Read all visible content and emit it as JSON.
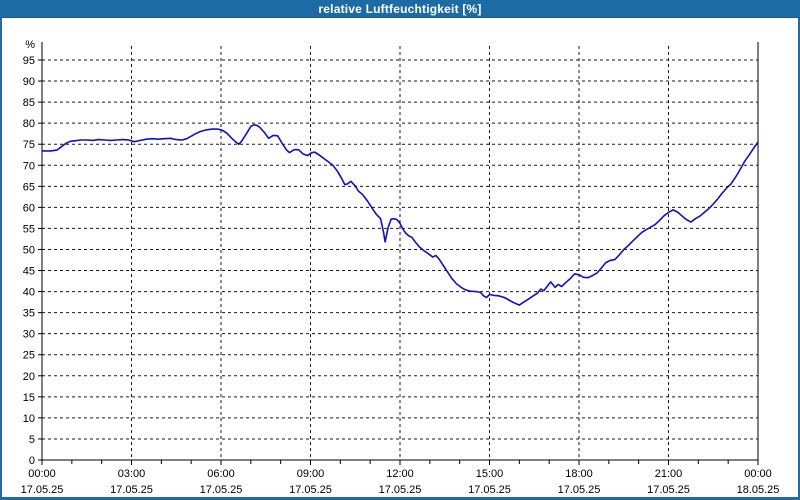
{
  "window": {
    "title": "relative Luftfeuchtigkeit [%]"
  },
  "colors": {
    "titlebar": "#1d6ba4",
    "titlebar_text": "#ffffff",
    "frame": "#1d6ba4",
    "plot_background": "#ffffff",
    "grid": "#1a1a1a",
    "axis": "#000000",
    "tick_label": "#000000",
    "curve": "#1111bd"
  },
  "chart_data": {
    "type": "line",
    "title": "relative Luftfeuchtigkeit [%]",
    "y_unit_label": "%",
    "ylabel": "relative Luftfeuchtigkeit",
    "ylim": [
      0,
      95
    ],
    "y_tick_step": 5,
    "y_ticks": [
      0,
      5,
      10,
      15,
      20,
      25,
      30,
      35,
      40,
      45,
      50,
      55,
      60,
      65,
      70,
      75,
      80,
      85,
      90,
      95
    ],
    "grid": "dashed",
    "legend": "none",
    "x_axis": {
      "unit": "time",
      "xlim_hours": [
        0,
        24
      ],
      "major_tick_interval_hours": 3,
      "minor_tick_interval_hours": 1,
      "labels": [
        {
          "t": 0,
          "time": "00:00",
          "date": "17.05.25"
        },
        {
          "t": 3,
          "time": "03:00",
          "date": "17.05.25"
        },
        {
          "t": 6,
          "time": "06:00",
          "date": "17.05.25"
        },
        {
          "t": 9,
          "time": "09:00",
          "date": "17.05.25"
        },
        {
          "t": 12,
          "time": "12:00",
          "date": "17.05.25"
        },
        {
          "t": 15,
          "time": "15:00",
          "date": "17.05.25"
        },
        {
          "t": 18,
          "time": "18:00",
          "date": "17.05.25"
        },
        {
          "t": 21,
          "time": "21:00",
          "date": "17.05.25"
        },
        {
          "t": 24,
          "time": "00:00",
          "date": "18.05.25"
        }
      ]
    },
    "series": [
      {
        "name": "relative Luftfeuchtigkeit",
        "unit": "%",
        "color": "#1111bd",
        "points": [
          [
            0.0,
            73.4
          ],
          [
            0.3,
            73.4
          ],
          [
            0.5,
            73.6
          ],
          [
            0.65,
            74.4
          ],
          [
            0.8,
            75.2
          ],
          [
            0.95,
            75.7
          ],
          [
            1.1,
            75.8
          ],
          [
            1.3,
            76.0
          ],
          [
            1.5,
            76.0
          ],
          [
            1.7,
            75.9
          ],
          [
            1.9,
            76.1
          ],
          [
            2.1,
            76.0
          ],
          [
            2.3,
            75.9
          ],
          [
            2.5,
            76.0
          ],
          [
            2.7,
            76.1
          ],
          [
            2.9,
            76.0
          ],
          [
            3.1,
            75.6
          ],
          [
            3.3,
            75.9
          ],
          [
            3.5,
            76.2
          ],
          [
            3.7,
            76.3
          ],
          [
            3.9,
            76.2
          ],
          [
            4.1,
            76.3
          ],
          [
            4.3,
            76.4
          ],
          [
            4.5,
            76.1
          ],
          [
            4.7,
            76.0
          ],
          [
            4.85,
            76.3
          ],
          [
            5.0,
            76.9
          ],
          [
            5.15,
            77.5
          ],
          [
            5.3,
            78.0
          ],
          [
            5.5,
            78.4
          ],
          [
            5.7,
            78.6
          ],
          [
            5.9,
            78.6
          ],
          [
            6.05,
            78.3
          ],
          [
            6.2,
            77.6
          ],
          [
            6.35,
            76.5
          ],
          [
            6.5,
            75.5
          ],
          [
            6.6,
            75.0
          ],
          [
            6.7,
            75.8
          ],
          [
            6.85,
            77.5
          ],
          [
            7.0,
            79.2
          ],
          [
            7.1,
            79.6
          ],
          [
            7.2,
            79.5
          ],
          [
            7.3,
            79.0
          ],
          [
            7.45,
            77.8
          ],
          [
            7.6,
            76.4
          ],
          [
            7.75,
            77.1
          ],
          [
            7.9,
            77.0
          ],
          [
            8.05,
            75.2
          ],
          [
            8.2,
            73.6
          ],
          [
            8.3,
            73.0
          ],
          [
            8.45,
            73.7
          ],
          [
            8.6,
            73.7
          ],
          [
            8.75,
            72.7
          ],
          [
            8.9,
            72.3
          ],
          [
            9.05,
            73.0
          ],
          [
            9.15,
            73.1
          ],
          [
            9.3,
            72.4
          ],
          [
            9.45,
            71.6
          ],
          [
            9.6,
            70.8
          ],
          [
            9.75,
            70.0
          ],
          [
            9.9,
            68.6
          ],
          [
            10.05,
            66.8
          ],
          [
            10.15,
            65.4
          ],
          [
            10.25,
            65.6
          ],
          [
            10.35,
            66.2
          ],
          [
            10.5,
            65.1
          ],
          [
            10.6,
            63.9
          ],
          [
            10.75,
            63.0
          ],
          [
            10.9,
            61.6
          ],
          [
            11.05,
            60.0
          ],
          [
            11.2,
            58.4
          ],
          [
            11.35,
            57.3
          ],
          [
            11.45,
            54.0
          ],
          [
            11.5,
            51.8
          ],
          [
            11.6,
            55.2
          ],
          [
            11.7,
            57.2
          ],
          [
            11.8,
            57.3
          ],
          [
            11.9,
            57.1
          ],
          [
            12.0,
            56.2
          ],
          [
            12.1,
            54.8
          ],
          [
            12.2,
            53.8
          ],
          [
            12.3,
            53.2
          ],
          [
            12.4,
            52.9
          ],
          [
            12.5,
            51.9
          ],
          [
            12.65,
            50.6
          ],
          [
            12.8,
            49.7
          ],
          [
            12.95,
            49.0
          ],
          [
            13.1,
            48.2
          ],
          [
            13.2,
            48.6
          ],
          [
            13.3,
            47.8
          ],
          [
            13.45,
            46.2
          ],
          [
            13.6,
            44.6
          ],
          [
            13.75,
            43.0
          ],
          [
            13.9,
            41.8
          ],
          [
            14.05,
            41.0
          ],
          [
            14.2,
            40.4
          ],
          [
            14.35,
            40.1
          ],
          [
            14.55,
            40.0
          ],
          [
            14.7,
            39.8
          ],
          [
            14.8,
            39.0
          ],
          [
            14.9,
            38.6
          ],
          [
            15.0,
            39.3
          ],
          [
            15.15,
            39.1
          ],
          [
            15.3,
            39.0
          ],
          [
            15.5,
            38.6
          ],
          [
            15.65,
            38.0
          ],
          [
            15.8,
            37.4
          ],
          [
            16.0,
            36.8
          ],
          [
            16.15,
            37.5
          ],
          [
            16.3,
            38.2
          ],
          [
            16.45,
            38.9
          ],
          [
            16.6,
            39.6
          ],
          [
            16.72,
            40.6
          ],
          [
            16.82,
            40.2
          ],
          [
            16.95,
            41.4
          ],
          [
            17.05,
            42.3
          ],
          [
            17.2,
            41.0
          ],
          [
            17.3,
            41.7
          ],
          [
            17.42,
            41.2
          ],
          [
            17.55,
            42.1
          ],
          [
            17.7,
            43.0
          ],
          [
            17.85,
            44.2
          ],
          [
            18.0,
            44.0
          ],
          [
            18.15,
            43.4
          ],
          [
            18.3,
            43.3
          ],
          [
            18.45,
            43.8
          ],
          [
            18.6,
            44.4
          ],
          [
            18.75,
            45.6
          ],
          [
            18.9,
            46.9
          ],
          [
            19.05,
            47.4
          ],
          [
            19.2,
            47.6
          ],
          [
            19.35,
            48.7
          ],
          [
            19.5,
            50.0
          ],
          [
            19.65,
            50.9
          ],
          [
            19.8,
            52.0
          ],
          [
            19.95,
            53.0
          ],
          [
            20.1,
            54.0
          ],
          [
            20.25,
            54.7
          ],
          [
            20.4,
            55.3
          ],
          [
            20.55,
            55.9
          ],
          [
            20.7,
            56.9
          ],
          [
            20.85,
            58.0
          ],
          [
            21.0,
            58.8
          ],
          [
            21.15,
            59.4
          ],
          [
            21.3,
            58.9
          ],
          [
            21.45,
            58.0
          ],
          [
            21.6,
            57.1
          ],
          [
            21.75,
            56.5
          ],
          [
            21.9,
            57.3
          ],
          [
            22.05,
            57.9
          ],
          [
            22.2,
            58.8
          ],
          [
            22.35,
            59.7
          ],
          [
            22.5,
            60.8
          ],
          [
            22.65,
            62.0
          ],
          [
            22.8,
            63.4
          ],
          [
            22.95,
            64.6
          ],
          [
            23.1,
            65.6
          ],
          [
            23.25,
            67.2
          ],
          [
            23.4,
            69.0
          ],
          [
            23.55,
            70.9
          ],
          [
            23.7,
            72.4
          ],
          [
            23.85,
            74.0
          ],
          [
            24.0,
            75.5
          ]
        ]
      }
    ]
  }
}
